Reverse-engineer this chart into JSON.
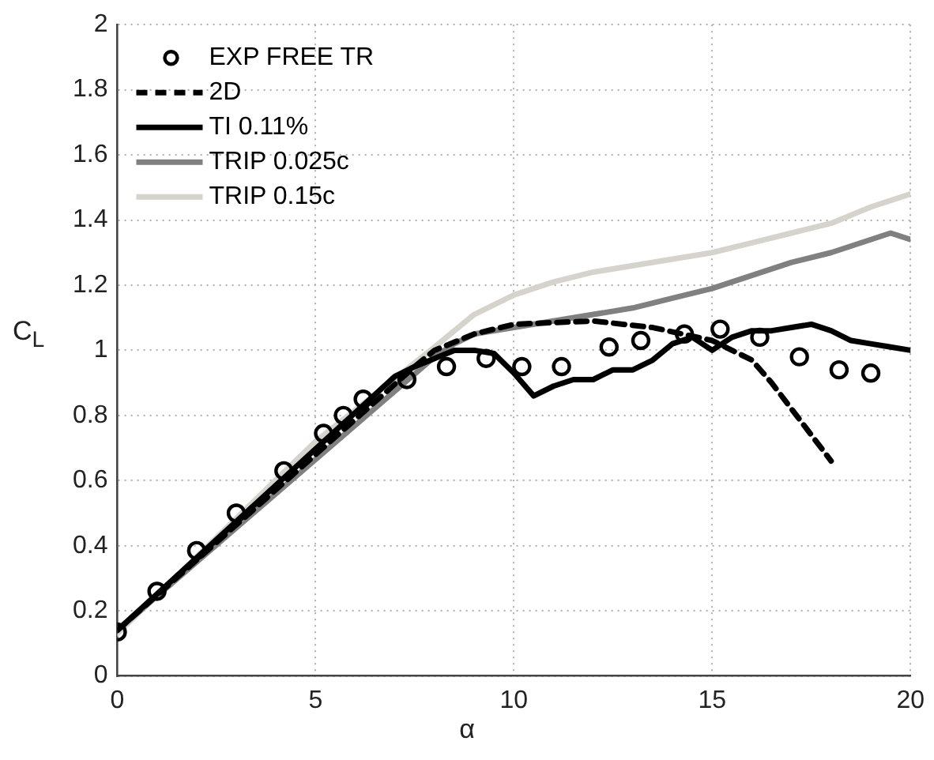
{
  "chart_data": {
    "type": "line",
    "xlabel": "α",
    "ylabel": "C$_{L}$",
    "xlim": [
      0,
      20
    ],
    "xticks": [
      0,
      5,
      10,
      15,
      20
    ],
    "ylim": [
      0,
      2
    ],
    "yticks": [
      0,
      0.2,
      0.4,
      0.6,
      0.8,
      1,
      1.2,
      1.4,
      1.6,
      1.8,
      2
    ],
    "grid": true,
    "legend": "top left",
    "series": [
      {
        "name": "EXP FREE TR",
        "type": "scatter",
        "marker": "circle",
        "color": "#000000",
        "x": [
          0,
          1,
          2,
          3,
          4.2,
          5.2,
          5.7,
          6.2,
          7.3,
          8.3,
          9.3,
          10.2,
          11.2,
          12.4,
          13.2,
          14.3,
          15.2,
          16.2,
          17.2,
          18.2,
          19
        ],
        "values": [
          0.135,
          0.26,
          0.385,
          0.5,
          0.63,
          0.745,
          0.8,
          0.85,
          0.91,
          0.95,
          0.975,
          0.95,
          0.95,
          1.01,
          1.03,
          1.05,
          1.065,
          1.04,
          0.98,
          0.94,
          0.93
        ]
      },
      {
        "name": "2D",
        "line_style": "dashed",
        "color": "#000000",
        "x": [
          0,
          7.5,
          8,
          9,
          10,
          12,
          13.5,
          15,
          16,
          16.5,
          17,
          17.5,
          18
        ],
        "values": [
          0.14,
          0.95,
          1.0,
          1.05,
          1.08,
          1.09,
          1.07,
          1.03,
          0.97,
          0.9,
          0.82,
          0.74,
          0.66
        ]
      },
      {
        "name": "TI 0.11%",
        "line_style": "solid",
        "color": "#000000",
        "x": [
          0,
          7,
          7.5,
          8.5,
          9,
          9.5,
          10,
          10.5,
          11,
          11.5,
          12,
          12.5,
          13,
          13.5,
          14,
          14.5,
          15,
          15.5,
          16,
          16.5,
          17,
          17.5,
          18,
          18.5,
          19,
          19.5,
          20
        ],
        "values": [
          0.14,
          0.92,
          0.95,
          1.0,
          1.0,
          0.99,
          0.93,
          0.86,
          0.89,
          0.91,
          0.91,
          0.94,
          0.94,
          0.97,
          1.02,
          1.04,
          1.0,
          1.04,
          1.06,
          1.06,
          1.07,
          1.08,
          1.06,
          1.03,
          1.02,
          1.01,
          1.0
        ]
      },
      {
        "name": "TRIP 0.025c",
        "line_style": "solid",
        "color": "#808080",
        "x": [
          0,
          8,
          8.5,
          9,
          10,
          11,
          12,
          13,
          14,
          15,
          16,
          17,
          18,
          19,
          19.5,
          20
        ],
        "values": [
          0.14,
          0.98,
          1.02,
          1.05,
          1.07,
          1.09,
          1.11,
          1.13,
          1.16,
          1.19,
          1.23,
          1.27,
          1.3,
          1.34,
          1.36,
          1.34
        ]
      },
      {
        "name": "TRIP 0.15c",
        "line_style": "solid",
        "color": "#d6d3cd",
        "x": [
          0,
          5,
          8,
          9,
          10,
          11,
          12,
          13,
          14,
          15,
          16,
          17,
          18,
          19,
          20
        ],
        "values": [
          0.13,
          0.72,
          1.01,
          1.11,
          1.17,
          1.21,
          1.24,
          1.26,
          1.28,
          1.3,
          1.33,
          1.36,
          1.39,
          1.44,
          1.48
        ]
      }
    ]
  }
}
